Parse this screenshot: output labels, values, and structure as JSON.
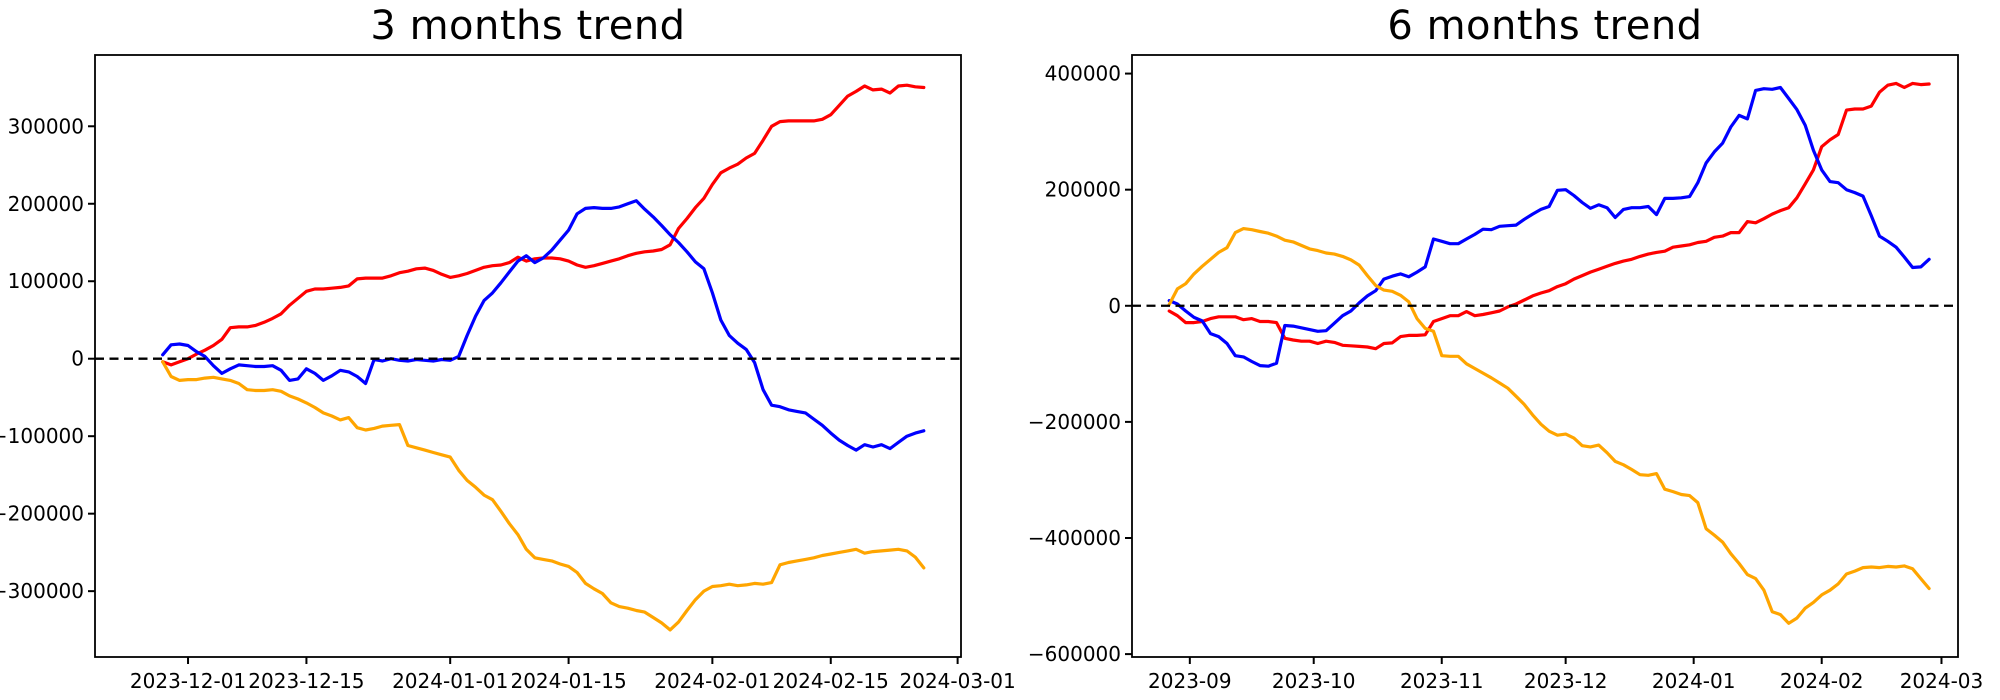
{
  "figure": {
    "background": "#ffffff",
    "axis_color": "#000000",
    "zero_line_color": "#000000"
  },
  "chart_data": [
    {
      "type": "line",
      "title": "3 months trend",
      "xlabel": "",
      "ylabel": "",
      "grid": false,
      "legend": null,
      "x_start_date": "2023-11-28",
      "x_step_days": 1,
      "xlim_days": [
        -8,
        94.4
      ],
      "ylim": [
        -385000,
        392000
      ],
      "zero_line": true,
      "x_ticks": [
        {
          "label": "2023-12-01",
          "day": 3
        },
        {
          "label": "2023-12-15",
          "day": 17
        },
        {
          "label": "2024-01-01",
          "day": 34
        },
        {
          "label": "2024-01-15",
          "day": 48
        },
        {
          "label": "2024-02-01",
          "day": 65
        },
        {
          "label": "2024-02-15",
          "day": 79
        },
        {
          "label": "2024-03-01",
          "day": 94
        }
      ],
      "y_ticks": [
        -300000,
        -200000,
        -100000,
        0,
        100000,
        200000,
        300000
      ],
      "series": [
        {
          "name": "red",
          "color": "#ff0000",
          "values": [
            -4000,
            -8000,
            -4000,
            0,
            6000,
            11000,
            17000,
            25000,
            40000,
            41000,
            41000,
            43000,
            47000,
            52000,
            58000,
            69000,
            78000,
            87000,
            90000,
            90000,
            91000,
            92000,
            94000,
            103000,
            104000,
            104000,
            104000,
            107000,
            111000,
            113000,
            116000,
            117000,
            114000,
            109000,
            105000,
            107000,
            110000,
            114000,
            118000,
            120000,
            121000,
            124000,
            131000,
            126000,
            129000,
            130000,
            130000,
            129000,
            126000,
            121000,
            118000,
            120000,
            123000,
            126000,
            129000,
            133000,
            136000,
            138000,
            139000,
            141000,
            147000,
            168000,
            181000,
            195000,
            207000,
            225000,
            240000,
            246000,
            251000,
            259000,
            265000,
            282000,
            300000,
            306000,
            307000,
            307000,
            307000,
            307000,
            309000,
            315000,
            327000,
            339000,
            345000,
            352000,
            347000,
            348000,
            343000,
            352000,
            353000,
            351000,
            350000
          ]
        },
        {
          "name": "blue",
          "color": "#0000ff",
          "values": [
            5000,
            18000,
            19000,
            17000,
            9000,
            3000,
            -9000,
            -19000,
            -13000,
            -8000,
            -9000,
            -10000,
            -10000,
            -9000,
            -15000,
            -28000,
            -26000,
            -13000,
            -19000,
            -28000,
            -22000,
            -15000,
            -17000,
            -23000,
            -32000,
            -1000,
            -3000,
            0,
            -2000,
            -3000,
            -1000,
            -2000,
            -3000,
            -1000,
            -2000,
            3000,
            30000,
            55000,
            75000,
            85000,
            98000,
            112000,
            126000,
            133000,
            124000,
            130000,
            140000,
            153000,
            166000,
            187000,
            194000,
            195000,
            194000,
            194000,
            196000,
            200000,
            204000,
            193000,
            183000,
            172000,
            160000,
            150000,
            138000,
            125000,
            116000,
            85000,
            50000,
            30000,
            20000,
            12000,
            -5000,
            -40000,
            -60000,
            -62000,
            -66000,
            -68000,
            -70000,
            -78000,
            -86000,
            -96000,
            -105000,
            -112000,
            -118000,
            -111000,
            -114000,
            -111000,
            -116000,
            -108000,
            -100000,
            -96000,
            -93000
          ]
        },
        {
          "name": "orange",
          "color": "#ffa500",
          "values": [
            -4000,
            -23000,
            -28000,
            -27000,
            -27000,
            -25000,
            -24000,
            -26000,
            -28000,
            -32000,
            -40000,
            -41000,
            -41000,
            -40000,
            -42000,
            -48000,
            -52000,
            -57000,
            -63000,
            -70000,
            -74000,
            -79000,
            -76000,
            -89000,
            -92000,
            -90000,
            -87000,
            -86000,
            -85000,
            -112000,
            -115000,
            -118000,
            -121000,
            -124000,
            -127000,
            -144000,
            -157000,
            -166000,
            -176000,
            -182000,
            -197000,
            -213000,
            -227000,
            -246000,
            -257000,
            -259000,
            -261000,
            -265000,
            -268000,
            -276000,
            -290000,
            -297000,
            -303000,
            -315000,
            -320000,
            -322000,
            -325000,
            -327000,
            -334000,
            -341000,
            -350000,
            -340000,
            -325000,
            -311000,
            -300000,
            -294000,
            -293000,
            -291000,
            -293000,
            -292000,
            -290000,
            -291000,
            -289000,
            -266000,
            -263000,
            -261000,
            -259000,
            -257000,
            -254000,
            -252000,
            -250000,
            -248000,
            -246000,
            -251000,
            -249000,
            -248000,
            -247000,
            -246000,
            -248000,
            -256000,
            -270000
          ]
        }
      ]
    },
    {
      "type": "line",
      "title": "6 months trend",
      "xlabel": "",
      "ylabel": "",
      "grid": false,
      "legend": null,
      "x_start_date": "2023-08-27",
      "x_step_days": 2,
      "xlim_days": [
        -9,
        191
      ],
      "ylim": [
        -605000,
        432000
      ],
      "zero_line": true,
      "x_ticks": [
        {
          "label": "2023-09",
          "day": 5
        },
        {
          "label": "2023-10",
          "day": 35
        },
        {
          "label": "2023-11",
          "day": 66
        },
        {
          "label": "2023-12",
          "day": 96
        },
        {
          "label": "2024-01",
          "day": 127
        },
        {
          "label": "2024-02",
          "day": 158
        },
        {
          "label": "2024-03",
          "day": 187
        }
      ],
      "y_ticks": [
        -600000,
        -400000,
        -200000,
        0,
        200000,
        400000
      ],
      "series": [
        {
          "name": "red",
          "color": "#ff0000",
          "values": [
            -9000,
            -17000,
            -29000,
            -29000,
            -27000,
            -22000,
            -19000,
            -19000,
            -19000,
            -24000,
            -22000,
            -27000,
            -27000,
            -29000,
            -56000,
            -59000,
            -61000,
            -61000,
            -65000,
            -61000,
            -63000,
            -68000,
            -69000,
            -70000,
            -71000,
            -74000,
            -65000,
            -64000,
            -53000,
            -51000,
            -51000,
            -50000,
            -27000,
            -22000,
            -17000,
            -17000,
            -10000,
            -17000,
            -15000,
            -12000,
            -9000,
            -2000,
            3000,
            10000,
            17000,
            22000,
            26000,
            33000,
            38000,
            46000,
            52000,
            58000,
            63000,
            68000,
            73000,
            77000,
            80000,
            85000,
            89000,
            92000,
            94000,
            101000,
            103000,
            105000,
            109000,
            111000,
            118000,
            120000,
            126000,
            126000,
            145000,
            143000,
            150000,
            158000,
            164000,
            169000,
            186000,
            210000,
            234000,
            274000,
            286000,
            295000,
            337000,
            339000,
            339000,
            344000,
            368000,
            380000,
            383000,
            376000,
            383000,
            381000,
            382000
          ]
        },
        {
          "name": "blue",
          "color": "#0000ff",
          "values": [
            9000,
            3000,
            -9000,
            -20000,
            -26000,
            -48000,
            -53000,
            -65000,
            -86000,
            -88000,
            -96000,
            -103000,
            -104000,
            -99000,
            -34000,
            -35000,
            -38000,
            -41000,
            -44000,
            -43000,
            -30000,
            -17000,
            -9000,
            5000,
            17000,
            26000,
            46000,
            51000,
            55000,
            50000,
            58000,
            67000,
            115000,
            111000,
            107000,
            107000,
            115000,
            123000,
            132000,
            131000,
            137000,
            138000,
            139000,
            149000,
            158000,
            166000,
            171000,
            199000,
            200000,
            190000,
            178000,
            168000,
            174000,
            169000,
            152000,
            166000,
            169000,
            169000,
            171000,
            157000,
            185000,
            185000,
            186000,
            188000,
            212000,
            246000,
            265000,
            280000,
            308000,
            328000,
            322000,
            371000,
            374000,
            373000,
            376000,
            357000,
            338000,
            311000,
            268000,
            234000,
            214000,
            212000,
            200000,
            195000,
            189000,
            155000,
            120000,
            111000,
            101000,
            84000,
            66000,
            67000,
            80000
          ]
        },
        {
          "name": "orange",
          "color": "#ffa500",
          "values": [
            2000,
            29000,
            38000,
            55000,
            68000,
            80000,
            92000,
            100000,
            126000,
            133000,
            131000,
            128000,
            125000,
            120000,
            113000,
            110000,
            104000,
            98000,
            95000,
            91000,
            89000,
            85000,
            79000,
            70000,
            52000,
            35000,
            27000,
            25000,
            18000,
            7000,
            -22000,
            -39000,
            -44000,
            -86000,
            -87000,
            -87000,
            -100000,
            -108000,
            -116000,
            -124000,
            -133000,
            -142000,
            -156000,
            -170000,
            -188000,
            -204000,
            -216000,
            -223000,
            -221000,
            -228000,
            -241000,
            -243000,
            -240000,
            -253000,
            -268000,
            -274000,
            -282000,
            -291000,
            -292000,
            -289000,
            -316000,
            -320000,
            -325000,
            -327000,
            -339000,
            -384000,
            -395000,
            -407000,
            -427000,
            -444000,
            -463000,
            -470000,
            -490000,
            -527000,
            -532000,
            -547000,
            -538000,
            -521000,
            -511000,
            -498000,
            -490000,
            -479000,
            -462000,
            -457000,
            -451000,
            -450000,
            -451000,
            -449000,
            -450000,
            -448000,
            -453000,
            -470000,
            -487000
          ]
        }
      ]
    }
  ]
}
